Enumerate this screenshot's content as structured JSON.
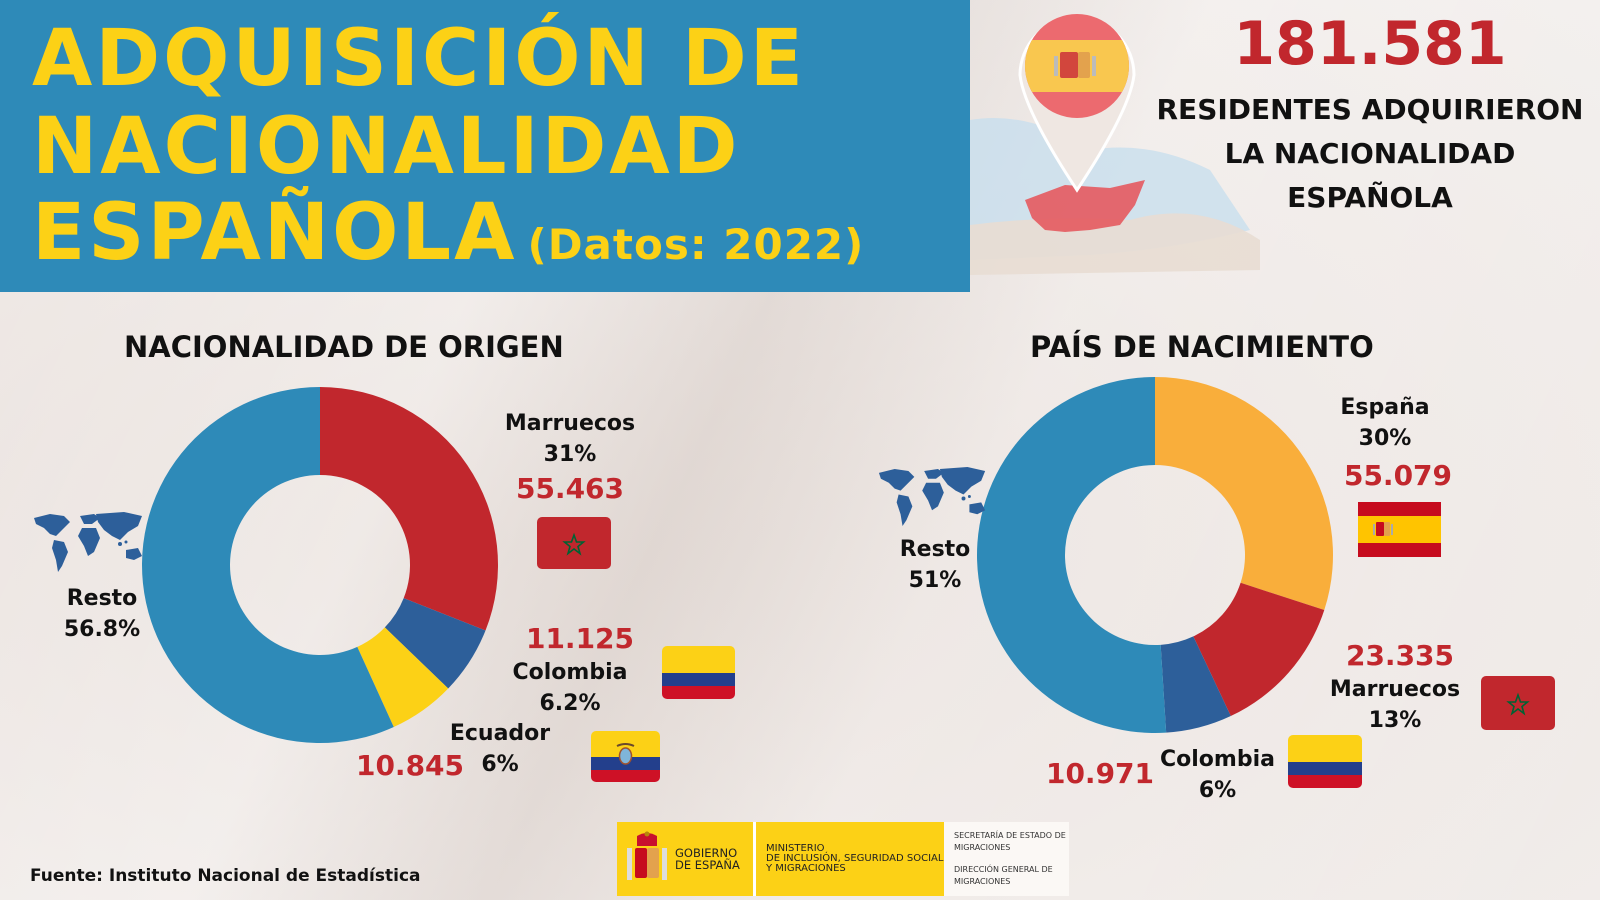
{
  "header": {
    "title_line1": "ADQUISICIÓN DE",
    "title_line2": "NACIONALIDAD",
    "title_line3": "ESPAÑOLA",
    "title_sub": "(Datos: 2022)"
  },
  "total": {
    "value": "181.581",
    "caption_line1": "RESIDENTES ADQUIRIERON",
    "caption_line2": "LA NACIONALIDAD",
    "caption_line3": "ESPAÑOLA"
  },
  "colors": {
    "title_bg": "#2e8ab8",
    "title_text": "#fcd116",
    "accent_red": "#c1272d",
    "resto_blue": "#2e8ab8",
    "dark_blue": "#2d5f9a",
    "yellow": "#fcd116",
    "orange": "#f9ae3b"
  },
  "chart_data": [
    {
      "type": "pie",
      "title": "NACIONALIDAD DE ORIGEN",
      "donut": true,
      "slices": [
        {
          "label": "Marruecos",
          "percent_label": "31%",
          "value_label": "55.463",
          "percent": 31,
          "color": "#c1272d",
          "flag": "morocco-flag-icon"
        },
        {
          "label": "Colombia",
          "percent_label": "6.2%",
          "value_label": "11.125",
          "percent": 6.2,
          "color": "#2d5f9a",
          "flag": "colombia-flag-icon"
        },
        {
          "label": "Ecuador",
          "percent_label": "6%",
          "value_label": "10.845",
          "percent": 6,
          "color": "#fcd116",
          "flag": "ecuador-flag-icon"
        },
        {
          "label": "Resto",
          "percent_label": "56.8%",
          "percent": 56.8,
          "color": "#2e8ab8",
          "icon": "world-map-icon"
        }
      ]
    },
    {
      "type": "pie",
      "title": "PAÍS DE NACIMIENTO",
      "donut": true,
      "slices": [
        {
          "label": "España",
          "percent_label": "30%",
          "value_label": "55.079",
          "percent": 30,
          "color": "#f9ae3b",
          "flag": "spain-flag-icon"
        },
        {
          "label": "Marruecos",
          "percent_label": "13%",
          "value_label": "23.335",
          "percent": 13,
          "color": "#c1272d",
          "flag": "morocco-flag-icon"
        },
        {
          "label": "Colombia",
          "percent_label": "6%",
          "value_label": "10.971",
          "percent": 6,
          "color": "#2d5f9a",
          "flag": "colombia-flag-icon"
        },
        {
          "label": "Resto",
          "percent_label": "51%",
          "percent": 51,
          "color": "#2e8ab8",
          "icon": "world-map-icon"
        }
      ]
    }
  ],
  "footer": {
    "source": "Fuente: Instituto Nacional de Estadística",
    "gov_line1": "GOBIERNO",
    "gov_line2": "DE ESPAÑA",
    "ministry_line1": "MINISTERIO",
    "ministry_line2": "DE INCLUSIÓN, SEGURIDAD SOCIAL",
    "ministry_line3": "Y MIGRACIONES",
    "sec_line1": "SECRETARÍA DE ESTADO DE",
    "sec_line2": "MIGRACIONES",
    "dir_line1": "DIRECCIÓN GENERAL DE",
    "dir_line2": "MIGRACIONES"
  }
}
